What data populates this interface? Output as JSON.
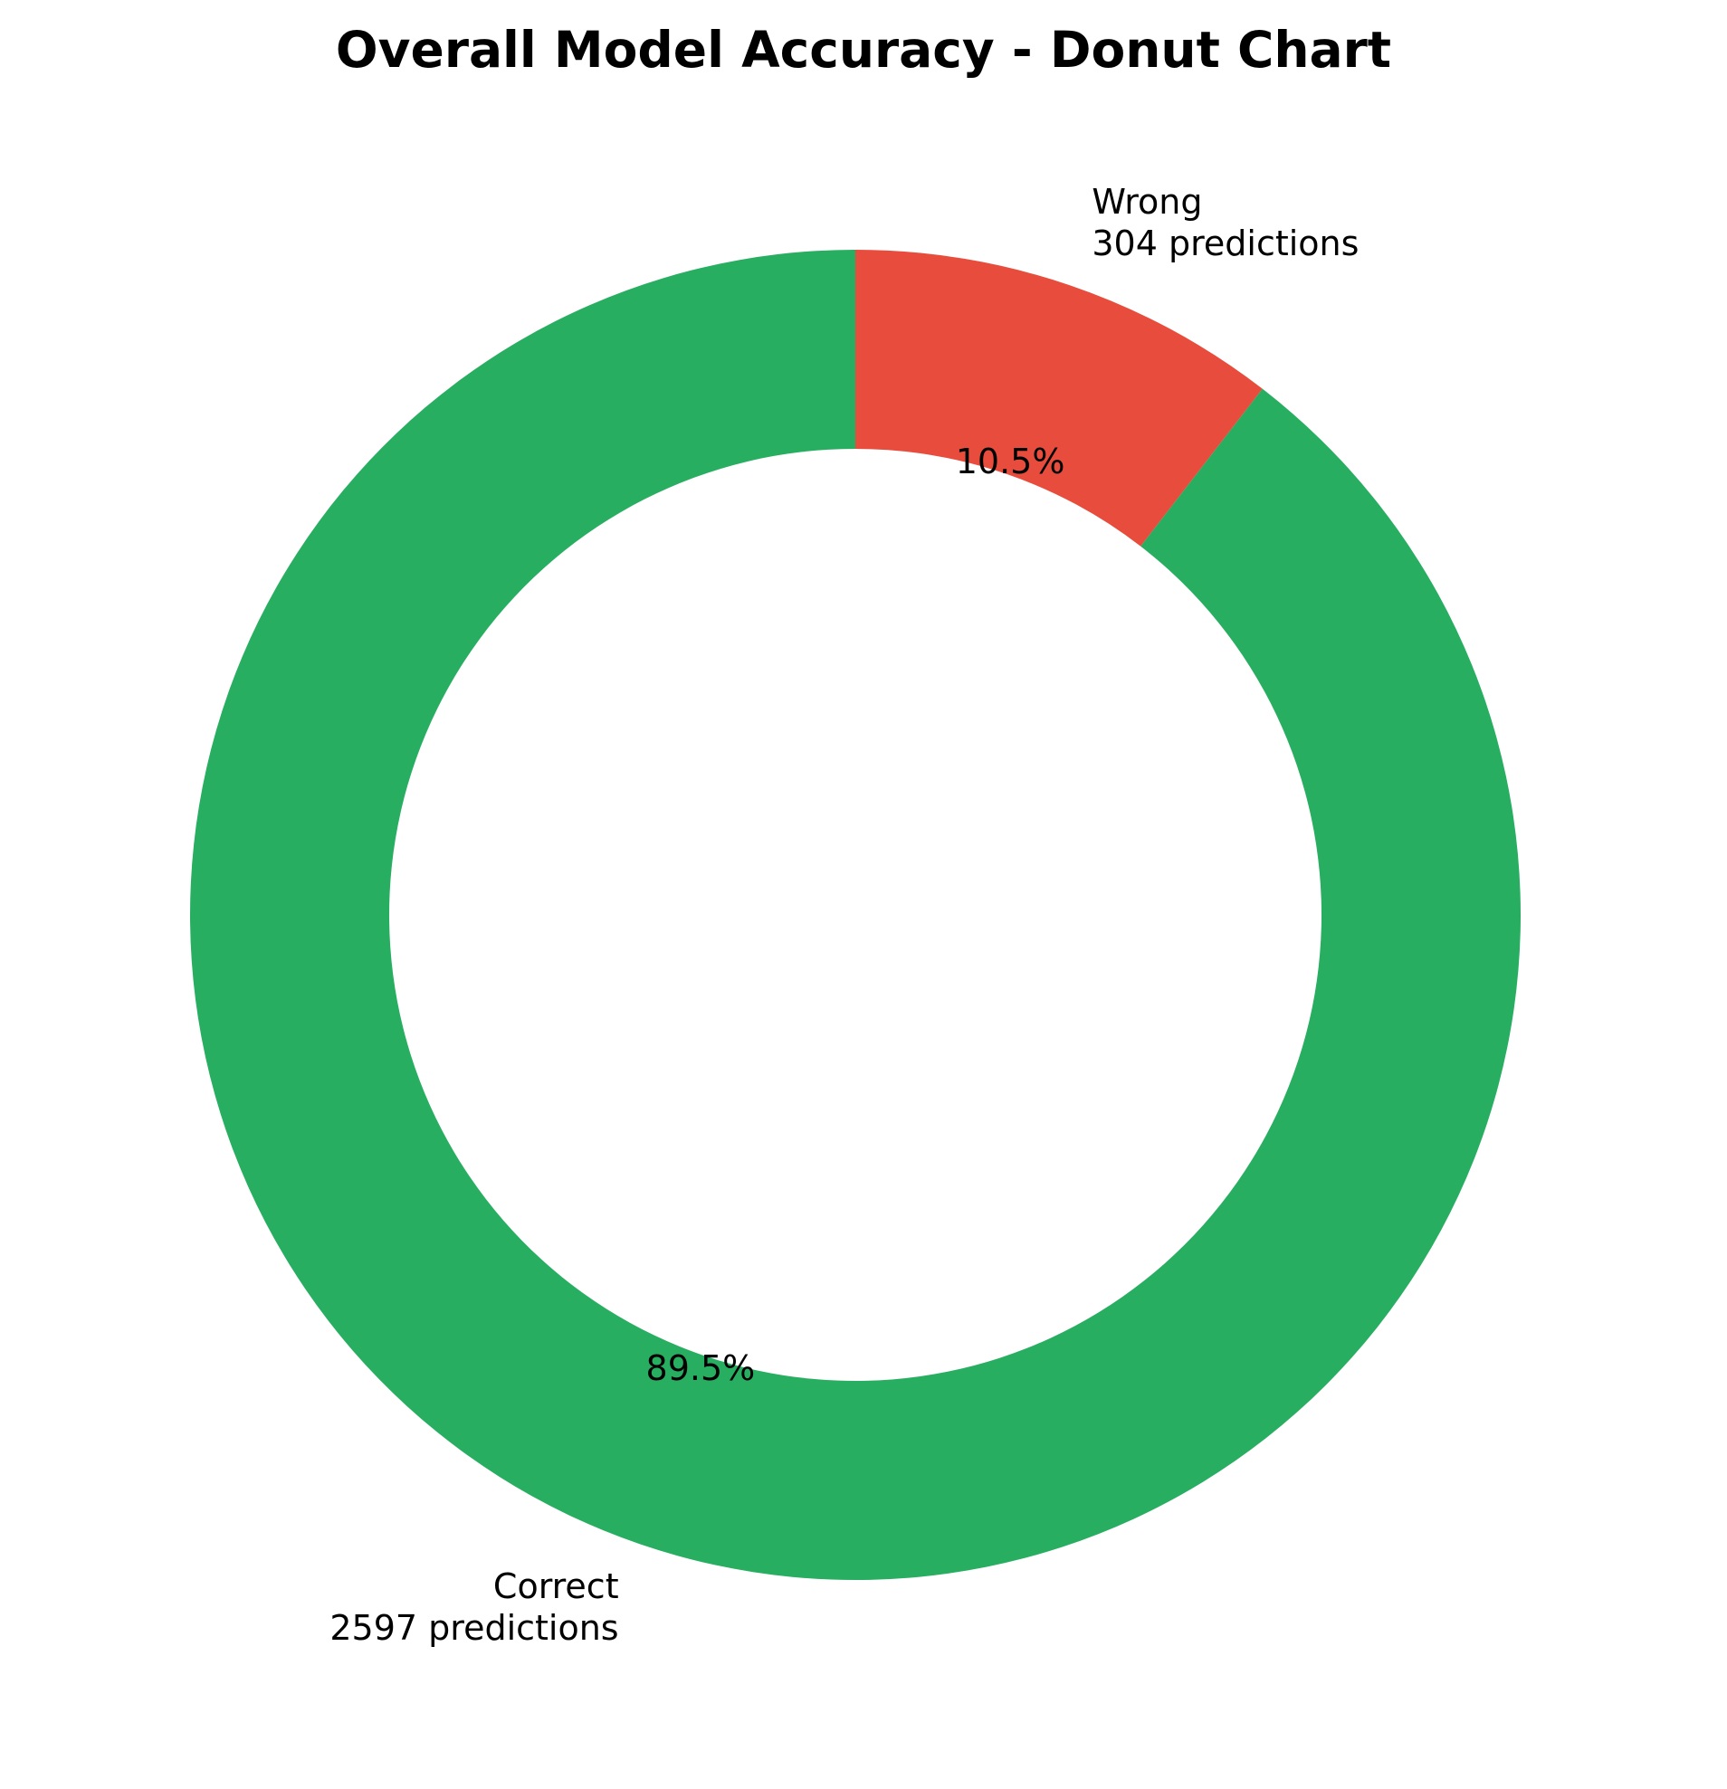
{
  "chart_data": {
    "type": "pie",
    "subtype": "donut",
    "title": "Overall Model Accuracy - Donut Chart",
    "start_angle": 90,
    "direction": "counterclockwise",
    "slices": [
      {
        "label": "Correct",
        "value": 2597,
        "count_label": "2597 predictions",
        "percent_label": "89.5%",
        "color": "#27ae60"
      },
      {
        "label": "Wrong",
        "value": 304,
        "count_label": "304 predictions",
        "percent_label": "10.5%",
        "color": "#e74c3c"
      }
    ]
  }
}
